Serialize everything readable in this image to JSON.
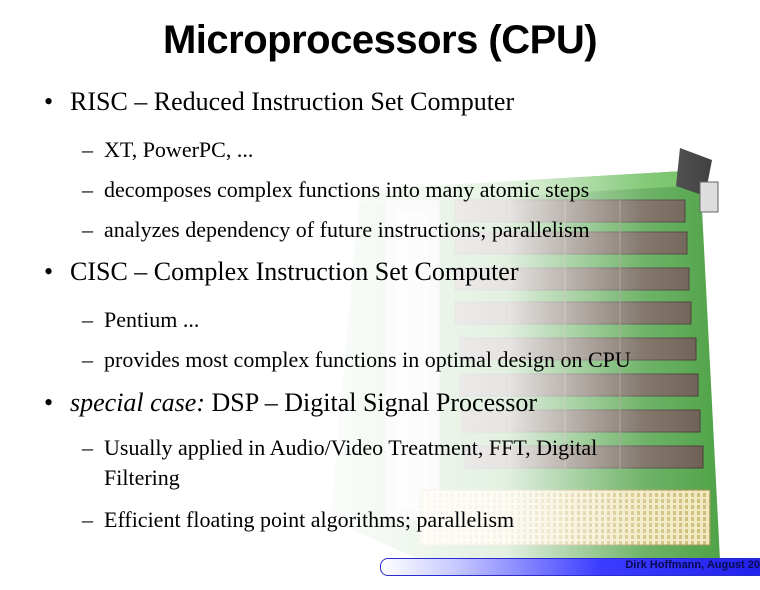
{
  "slide": {
    "title": "Microprocessors (CPU)",
    "bullet_symbol": "•",
    "dash_symbol": "–",
    "items": [
      {
        "level": 1,
        "text": "RISC – Reduced Instruction Set Computer"
      },
      {
        "level": 2,
        "text": "XT, PowerPC, ..."
      },
      {
        "level": 2,
        "text": "decomposes complex functions into many atomic steps"
      },
      {
        "level": 2,
        "text": "analyzes dependency of future instructions; parallelism"
      },
      {
        "level": 1,
        "text": "CISC – Complex Instruction Set Computer"
      },
      {
        "level": 2,
        "text": "Pentium ..."
      },
      {
        "level": 2,
        "text": "provides most complex functions in optimal design on CPU"
      },
      {
        "level": 1,
        "emphasis": "special case:",
        "text": "DSP – Digital Signal Processor"
      },
      {
        "level": 2,
        "text": "Usually applied in Audio/Video Treatment, FFT, Digital",
        "continuation": "Filtering"
      },
      {
        "level": 2,
        "text": "Efficient floating point algorithms; parallelism"
      }
    ]
  },
  "footer": {
    "text": "Dirk Hoffmann, August 20"
  },
  "colors": {
    "board": "#2f8a2a",
    "chip": "#5a4a3a",
    "connector": "#d6c98a",
    "footer_bar": "#2a2ad0"
  }
}
